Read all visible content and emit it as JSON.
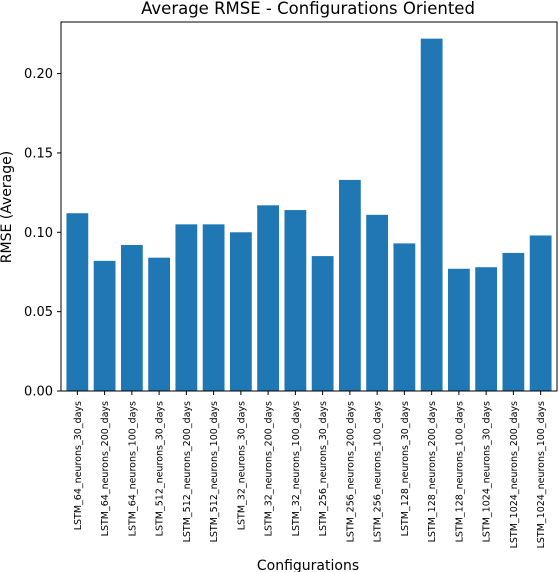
{
  "chart_data": {
    "type": "bar",
    "title": "Average RMSE - Configurations Oriented",
    "xlabel": "Configurations",
    "ylabel": "RMSE (Average)",
    "ylim": [
      0,
      0.2325
    ],
    "yticks": [
      "0.00",
      "0.05",
      "0.10",
      "0.15",
      "0.20"
    ],
    "bar_color": "#1f77b4",
    "categories": [
      "LSTM_64_neurons_30_days",
      "LSTM_64_neurons_200_days",
      "LSTM_64_neurons_100_days",
      "LSTM_512_neurons_30_days",
      "LSTM_512_neurons_200_days",
      "LSTM_512_neurons_100_days",
      "LSTM_32_neurons_30_days",
      "LSTM_32_neurons_200_days",
      "LSTM_32_neurons_100_days",
      "LSTM_256_neurons_30_days",
      "LSTM_256_neurons_200_days",
      "LSTM_256_neurons_100_days",
      "LSTM_128_neurons_30_days",
      "LSTM_128_neurons_200_days",
      "LSTM_128_neurons_100_days",
      "LSTM_1024_neurons_30_days",
      "LSTM_1024_neurons_200_days",
      "LSTM_1024_neurons_100_days"
    ],
    "values": [
      0.112,
      0.082,
      0.092,
      0.084,
      0.105,
      0.105,
      0.1,
      0.117,
      0.114,
      0.085,
      0.133,
      0.111,
      0.093,
      0.222,
      0.077,
      0.078,
      0.087,
      0.098
    ]
  }
}
